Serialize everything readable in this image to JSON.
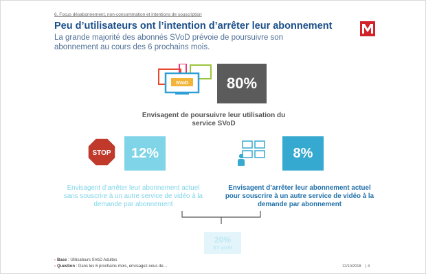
{
  "header": {
    "section_label": "6. Focus désabonnement, non-consommation et intentions de souscription",
    "title": "Peu d’utilisateurs ont l’intention d’arrêter leur abonnement",
    "subtitle": "La grande majorité des abonnés SVoD prévoie de poursuivre son abonnement au cours des 6 prochains mois."
  },
  "main_stat": {
    "icon_label": "SVoD",
    "value": "80%",
    "description": "Envisagent de poursuivre leur utilisation du service SVoD"
  },
  "left_stat": {
    "icon_text": "STOP",
    "value": "12%",
    "description": "Envisagent d’arrêter leur abonnement actuel sans souscrire à un autre service de vidéo à la demande par abonnement"
  },
  "right_stat": {
    "value": "8%",
    "description": "Envisagent d’arrêter leur abonnement actuel pour souscrire à un autre service de vidéo à la demande par abonnement"
  },
  "summary": {
    "value": "20%",
    "label": "ST arrêt"
  },
  "footer": {
    "base_label": "Base",
    "base_text": " : Utilisateurs SVoD Adultes",
    "question_label": "Question",
    "question_text": " : Dans les 6 prochains mois, envisagez-vous de…",
    "date": "12/10/2018",
    "page": "| 4"
  },
  "colors": {
    "title": "#1b4f8a",
    "main_box": "#5b5b5b",
    "light_cyan": "#7fd4e8",
    "mid_blue": "#35a9cf",
    "stop_red": "#c0392b"
  },
  "icons": [
    "logo-icon",
    "devices-icon",
    "stop-sign-icon",
    "people-icon"
  ]
}
